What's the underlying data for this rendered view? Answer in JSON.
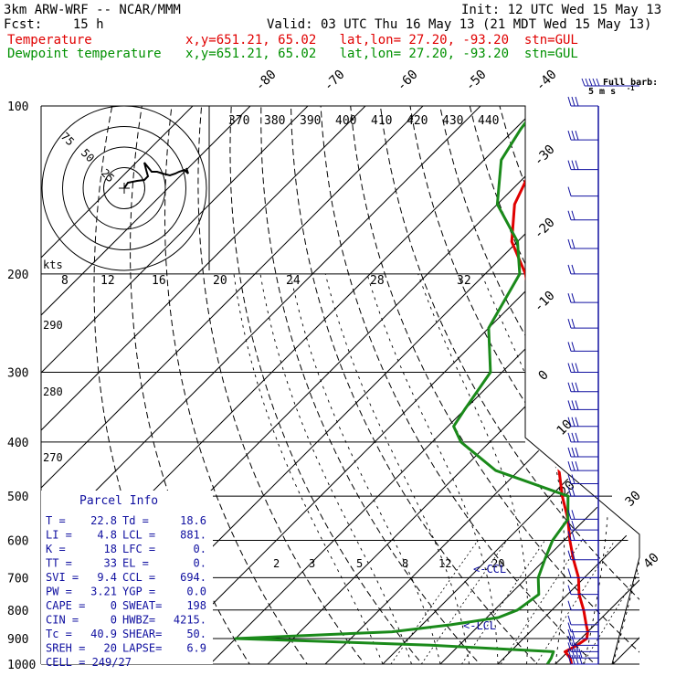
{
  "header": {
    "model": "3km ARW-WRF -- NCAR/MMM",
    "init": "Init: 12 UTC Wed 15 May 13",
    "fcst": "Fcst:    15 h",
    "valid": "Valid: 03 UTC Thu 16 May 13 (21 MDT Wed 15 May 13)",
    "temp_label": "Temperature",
    "temp_info": "x,y=651.21, 65.02   lat,lon= 27.20, -93.20  stn=GUL",
    "dew_label": "Dewpoint temperature",
    "dew_info": "x,y=651.21, 65.02   lat,lon= 27.20, -93.20  stn=GUL"
  },
  "colors": {
    "temperature": "#e00000",
    "dewpoint": "#1a8a1a",
    "wind": "#1010a0",
    "grid": "#000000"
  },
  "parcel_info": {
    "title": "Parcel Info",
    "rows": [
      [
        "T  =",
        "22.8",
        "Td =",
        "18.6"
      ],
      [
        "LI =",
        "4.8",
        "LCL =",
        "881."
      ],
      [
        "K  =",
        "18",
        "LFC =",
        "0."
      ],
      [
        "TT =",
        "33",
        "EL  =",
        "0."
      ],
      [
        "SVI =",
        "9.4",
        "CCL =",
        "694."
      ],
      [
        "PW =",
        "3.21",
        "YGP =",
        "0.0"
      ],
      [
        "CAPE =",
        "0",
        "SWEAT=",
        "198"
      ],
      [
        "CIN =",
        "0",
        "HWBZ=",
        "4215."
      ],
      [
        "Tc =",
        "40.9",
        "SHEAR=",
        "50."
      ],
      [
        "SREH =",
        "20",
        "LAPSE=",
        "6.9"
      ],
      [
        "CELL = 249/27",
        "",
        "",
        ""
      ]
    ]
  },
  "wind_legend": {
    "title": "Full barb:",
    "value": "5 m s",
    "exp": "-1"
  },
  "hodograph": {
    "units": "kts",
    "rings": [
      "25",
      "50",
      "75"
    ]
  },
  "lcl_labels": [
    "<-CCL",
    "<-LCL"
  ],
  "chart_data": {
    "type": "line",
    "title": "",
    "y_axis": {
      "label": "",
      "scale": "log-pressure",
      "range": [
        1000,
        100
      ],
      "ticks": [
        100,
        200,
        300,
        400,
        500,
        600,
        700,
        800,
        900,
        1000
      ]
    },
    "isotherm_ticks_top": [
      "-80",
      "-70",
      "-60",
      "-50",
      "-40"
    ],
    "isotherm_ticks_right": [
      "-30",
      "-20",
      "-10",
      "0",
      "10",
      "20",
      "30",
      "40"
    ],
    "theta_labels": [
      "370",
      "380",
      "390",
      "400",
      "410",
      "420",
      "430",
      "440"
    ],
    "dry_adiabat_left_labels": [
      "290",
      "280",
      "270"
    ],
    "mixing_ratio_top_labels": [
      "8",
      "12",
      "16",
      "20",
      "24",
      "28",
      "32"
    ],
    "mixing_ratio_low_labels": [
      "2",
      "3",
      "5",
      "8",
      "12",
      "20"
    ],
    "series": [
      {
        "name": "Temperature",
        "points": [
          [
            1000,
            22.8
          ],
          [
            975,
            21.5
          ],
          [
            950,
            19.5
          ],
          [
            925,
            20.5
          ],
          [
            900,
            21
          ],
          [
            875,
            20
          ],
          [
            850,
            18.5
          ],
          [
            800,
            15.5
          ],
          [
            750,
            12
          ],
          [
            700,
            9
          ],
          [
            650,
            5
          ],
          [
            600,
            1
          ],
          [
            550,
            -3
          ],
          [
            500,
            -8
          ],
          [
            450,
            -13
          ],
          [
            400,
            -18
          ],
          [
            350,
            -25
          ],
          [
            300,
            -32
          ],
          [
            250,
            -42
          ],
          [
            200,
            -53
          ],
          [
            175,
            -61
          ],
          [
            150,
            -67
          ],
          [
            125,
            -71
          ],
          [
            110,
            -72
          ],
          [
            100,
            -74
          ]
        ]
      },
      {
        "name": "Dewpoint temperature",
        "points": [
          [
            1000,
            18.6
          ],
          [
            975,
            18.2
          ],
          [
            950,
            17.5
          ],
          [
            925,
            -5
          ],
          [
            910,
            -25
          ],
          [
            900,
            -40
          ],
          [
            875,
            -14
          ],
          [
            850,
            -5
          ],
          [
            825,
            2
          ],
          [
            800,
            4
          ],
          [
            750,
            5
          ],
          [
            700,
            2
          ],
          [
            650,
            0
          ],
          [
            600,
            -2
          ],
          [
            550,
            -3
          ],
          [
            500,
            -7
          ],
          [
            450,
            -24
          ],
          [
            400,
            -35
          ],
          [
            375,
            -39
          ],
          [
            350,
            -40
          ],
          [
            300,
            -42
          ],
          [
            250,
            -50
          ],
          [
            200,
            -54
          ],
          [
            175,
            -60
          ],
          [
            150,
            -70
          ],
          [
            125,
            -77
          ],
          [
            110,
            -79
          ],
          [
            100,
            -80
          ]
        ]
      }
    ],
    "winds": [
      {
        "p": 1000,
        "barbs": 4
      },
      {
        "p": 975,
        "barbs": 4
      },
      {
        "p": 950,
        "barbs": 3
      },
      {
        "p": 925,
        "barbs": 2
      },
      {
        "p": 900,
        "barbs": 2
      },
      {
        "p": 875,
        "barbs": 1
      },
      {
        "p": 850,
        "barbs": 1
      },
      {
        "p": 800,
        "barbs": 1
      },
      {
        "p": 750,
        "barbs": 1
      },
      {
        "p": 700,
        "barbs": 1
      },
      {
        "p": 650,
        "barbs": 2
      },
      {
        "p": 600,
        "barbs": 2
      },
      {
        "p": 575,
        "barbs": 2
      },
      {
        "p": 550,
        "barbs": 2
      },
      {
        "p": 500,
        "barbs": 2
      },
      {
        "p": 475,
        "barbs": 2
      },
      {
        "p": 450,
        "barbs": 3
      },
      {
        "p": 425,
        "barbs": 3
      },
      {
        "p": 400,
        "barbs": 3
      },
      {
        "p": 375,
        "barbs": 3
      },
      {
        "p": 350,
        "barbs": 3
      },
      {
        "p": 325,
        "barbs": 3
      },
      {
        "p": 300,
        "barbs": 3
      },
      {
        "p": 275,
        "barbs": 2
      },
      {
        "p": 250,
        "barbs": 2
      },
      {
        "p": 225,
        "barbs": 2
      },
      {
        "p": 200,
        "barbs": 2
      },
      {
        "p": 180,
        "barbs": 2
      },
      {
        "p": 160,
        "barbs": 2
      },
      {
        "p": 145,
        "barbs": 1
      },
      {
        "p": 130,
        "barbs": 3
      },
      {
        "p": 115,
        "barbs": 3
      },
      {
        "p": 100,
        "barbs": 3
      }
    ]
  }
}
